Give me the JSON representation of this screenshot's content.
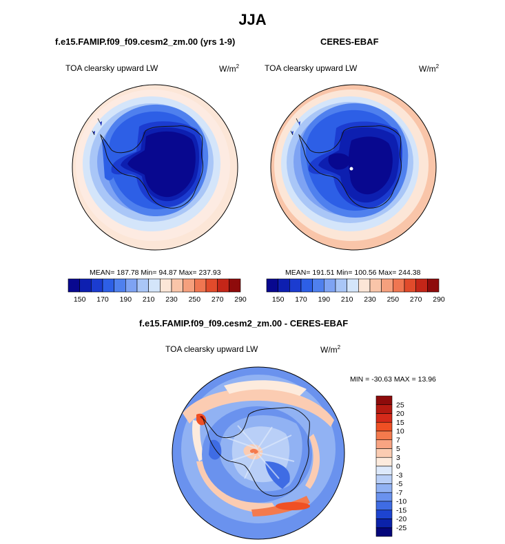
{
  "figure": {
    "title": "JJA",
    "colors": {
      "seq": [
        "#08088f",
        "#0d1fb0",
        "#1b3cd0",
        "#2d5fe6",
        "#4f80ee",
        "#7ea3f3",
        "#a9c6f7",
        "#d4e5fa",
        "#fce6d7",
        "#f9c5a9",
        "#f5a07d",
        "#ef7651",
        "#e14b2b",
        "#c42618",
        "#8e0b0b"
      ],
      "div": [
        "#8e0b0b",
        "#b51a11",
        "#d52a1a",
        "#ef5024",
        "#f47a4d",
        "#f8a482",
        "#fbccb2",
        "#fdebdd",
        "#dde9fb",
        "#b9cff7",
        "#91b2f3",
        "#6a92ee",
        "#3f6ce4",
        "#1d44d0",
        "#0b22aa",
        "#05067a"
      ],
      "coast": "#111111"
    },
    "panels": [
      {
        "id": "model",
        "case_title": "f.e15.FAMIP.f09_f09.cesm2_zm.00 (yrs 1-9)",
        "left_label": "TOA clearsky upward LW",
        "units_base": "W/m",
        "units_exp": "2",
        "stats": "MEAN= 187.78  Min=  94.87  Max= 237.93",
        "colorbar_ticks": [
          "150",
          "170",
          "190",
          "210",
          "230",
          "250",
          "270",
          "290"
        ]
      },
      {
        "id": "obs",
        "case_title": "CERES-EBAF",
        "left_label": "TOA clearsky upward LW",
        "units_base": "W/m",
        "units_exp": "2",
        "stats": "MEAN= 191.51  Min= 100.56  Max= 244.38",
        "colorbar_ticks": [
          "150",
          "170",
          "190",
          "210",
          "230",
          "250",
          "270",
          "290"
        ]
      }
    ],
    "diff": {
      "case_title": "f.e15.FAMIP.f09_f09.cesm2_zm.00 - CERES-EBAF",
      "left_label": "TOA clearsky upward LW",
      "units_base": "W/m",
      "units_exp": "2",
      "stats": "MIN = -30.63 MAX =  13.96",
      "colorbar_ticks": [
        "25",
        "20",
        "15",
        "10",
        "7",
        "5",
        "3",
        "0",
        "-3",
        "-5",
        "-7",
        "-10",
        "-15",
        "-20",
        "-25"
      ]
    }
  }
}
